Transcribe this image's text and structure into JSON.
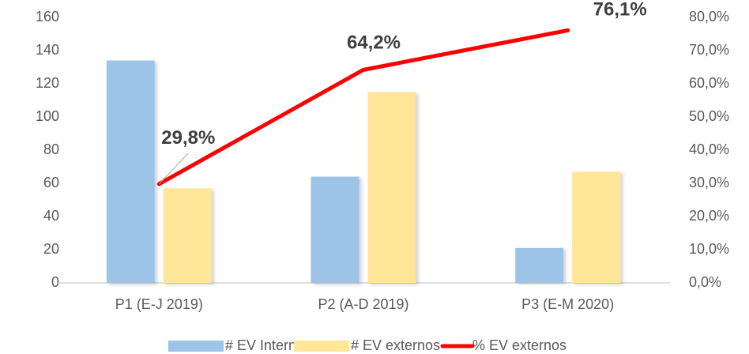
{
  "chart_data": {
    "type": "bar",
    "categories": [
      "P1 (E-J 2019)",
      "P2 (A-D 2019)",
      "P3 (E-M 2020)"
    ],
    "series": [
      {
        "name": "# EV Internos",
        "color": "#9dc3e6",
        "values": [
          134,
          64,
          21
        ]
      },
      {
        "name": "# EV externos",
        "color": "#ffe699",
        "values": [
          57,
          115,
          67
        ]
      },
      {
        "name": "% EV externos",
        "color": "#ff0000",
        "type": "line",
        "axis": "y2",
        "values": [
          29.8,
          64.2,
          76.1
        ],
        "value_labels": [
          "29,8%",
          "64,2%",
          "76,1%"
        ]
      }
    ],
    "ylim": [
      0,
      160
    ],
    "yticks": [
      0,
      20,
      40,
      60,
      80,
      100,
      120,
      140,
      160
    ],
    "y2lim": [
      0,
      80
    ],
    "y2ticks": [
      {
        "value": 0,
        "label": "0,0%"
      },
      {
        "value": 10,
        "label": "10,0%"
      },
      {
        "value": 20,
        "label": "20,0%"
      },
      {
        "value": 30,
        "label": "30,0%"
      },
      {
        "value": 40,
        "label": "40,0%"
      },
      {
        "value": 50,
        "label": "50,0%"
      },
      {
        "value": 60,
        "label": "60,0%"
      },
      {
        "value": 70,
        "label": "70,0%"
      },
      {
        "value": 80,
        "label": "80,0%"
      }
    ],
    "grid": false,
    "legend": "bottom"
  }
}
